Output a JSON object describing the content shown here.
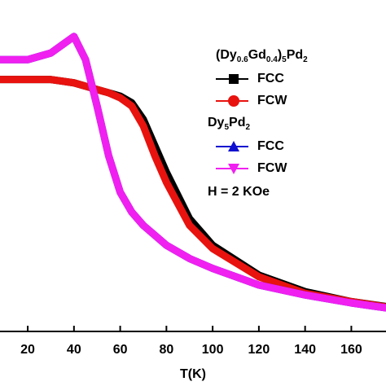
{
  "chart_data": {
    "type": "line",
    "x_label": "T(K)",
    "xlim": [
      8,
      175
    ],
    "xticks": [
      20,
      40,
      60,
      80,
      100,
      120,
      140,
      160
    ],
    "ylim": [
      0,
      1
    ],
    "legend_groups": [
      "(Dy0.6Gd0.4)5Pd2",
      "Dy5Pd2"
    ],
    "annotation": "H = 2 KOe",
    "x": [
      8,
      20,
      30,
      35,
      40,
      45,
      50,
      55,
      60,
      65,
      70,
      75,
      80,
      90,
      100,
      120,
      140,
      160,
      175
    ],
    "series": [
      {
        "name": "FCC",
        "color": "#000000",
        "marker": "square",
        "group": 0,
        "values": [
          0.76,
          0.76,
          0.76,
          0.755,
          0.75,
          0.74,
          0.73,
          0.72,
          0.71,
          0.69,
          0.64,
          0.56,
          0.48,
          0.34,
          0.26,
          0.17,
          0.12,
          0.09,
          0.075
        ]
      },
      {
        "name": "FCW",
        "color": "#e8120e",
        "marker": "circle",
        "group": 0,
        "values": [
          0.76,
          0.76,
          0.76,
          0.755,
          0.75,
          0.74,
          0.73,
          0.72,
          0.705,
          0.68,
          0.62,
          0.53,
          0.45,
          0.32,
          0.25,
          0.165,
          0.115,
          0.09,
          0.074
        ]
      },
      {
        "name": "FCC",
        "color": "#1010d0",
        "marker": "triangle-up",
        "group": 1,
        "values": [
          0.82,
          0.82,
          0.84,
          0.865,
          0.89,
          0.82,
          0.68,
          0.53,
          0.42,
          0.36,
          0.32,
          0.29,
          0.26,
          0.22,
          0.19,
          0.14,
          0.11,
          0.086,
          0.071
        ]
      },
      {
        "name": "FCW",
        "color": "#f020f0",
        "marker": "triangle-down",
        "group": 1,
        "values": [
          0.82,
          0.82,
          0.84,
          0.865,
          0.89,
          0.82,
          0.68,
          0.53,
          0.42,
          0.36,
          0.32,
          0.29,
          0.26,
          0.22,
          0.19,
          0.14,
          0.11,
          0.086,
          0.071
        ]
      }
    ]
  }
}
